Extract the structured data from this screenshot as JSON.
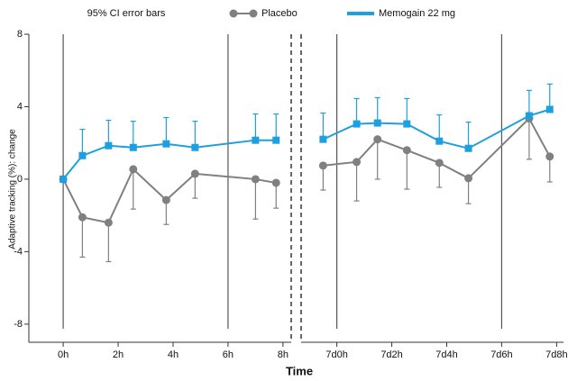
{
  "chart_data": {
    "type": "line",
    "legend_title": "95% CI error bars",
    "xlabel": "Time",
    "ylabel": "Adaptive tracking (%): change",
    "ylim": [
      -9,
      8
    ],
    "yticks": [
      8,
      4,
      0,
      -4,
      -8
    ],
    "panels": [
      {
        "xlim": [
          -1.25,
          8.3
        ],
        "xticks": [
          {
            "value": 0,
            "label": "0h"
          },
          {
            "value": 2,
            "label": "2h"
          },
          {
            "value": 4,
            "label": "4h"
          },
          {
            "value": 6,
            "label": "6h"
          },
          {
            "value": 8,
            "label": "8h"
          }
        ],
        "vlines": [
          0,
          6
        ],
        "x": [
          0,
          0.7,
          1.65,
          2.55,
          3.75,
          4.8,
          7,
          7.75
        ],
        "series": [
          {
            "name": "Placebo",
            "color": "#808080",
            "marker": "circle",
            "error_direction": "down",
            "values": [
              0,
              -2.1,
              -2.4,
              0.55,
              -1.15,
              0.3,
              0,
              -0.2
            ],
            "errors": [
              null,
              2.2,
              2.15,
              2.2,
              1.35,
              1.35,
              2.2,
              1.4
            ]
          },
          {
            "name": "Memogain 22 mg",
            "color": "#1e9fe0",
            "marker": "square",
            "error_direction": "up",
            "values": [
              0,
              1.3,
              1.85,
              1.75,
              1.95,
              1.75,
              2.15,
              2.15
            ],
            "errors": [
              null,
              1.45,
              1.4,
              1.45,
              1.45,
              1.45,
              1.45,
              1.45
            ]
          }
        ]
      },
      {
        "xlim": [
          -1.3,
          8.25
        ],
        "xticks": [
          {
            "value": 0,
            "label": "7d0h"
          },
          {
            "value": 2,
            "label": "7d2h"
          },
          {
            "value": 4,
            "label": "7d4h"
          },
          {
            "value": 6,
            "label": "7d6h"
          },
          {
            "value": 8,
            "label": "7d8h"
          }
        ],
        "vlines": [
          0,
          6
        ],
        "x": [
          -0.5,
          0.72,
          1.48,
          2.55,
          3.73,
          4.79,
          7,
          7.75
        ],
        "series": [
          {
            "name": "Placebo",
            "color": "#808080",
            "marker": "circle",
            "error_direction": "down",
            "values": [
              0.75,
              0.95,
              2.2,
              1.6,
              0.9,
              0.05,
              3.35,
              1.25
            ],
            "errors": [
              1.35,
              2.15,
              2.2,
              2.15,
              1.35,
              1.4,
              2.25,
              1.4
            ]
          },
          {
            "name": "Memogain 22 mg",
            "color": "#1e9fe0",
            "marker": "square",
            "error_direction": "up",
            "values": [
              2.2,
              3.05,
              3.1,
              3.05,
              2.1,
              1.7,
              3.5,
              3.85
            ],
            "errors": [
              1.45,
              1.4,
              1.4,
              1.4,
              1.45,
              1.45,
              1.4,
              1.4
            ]
          }
        ]
      }
    ]
  }
}
